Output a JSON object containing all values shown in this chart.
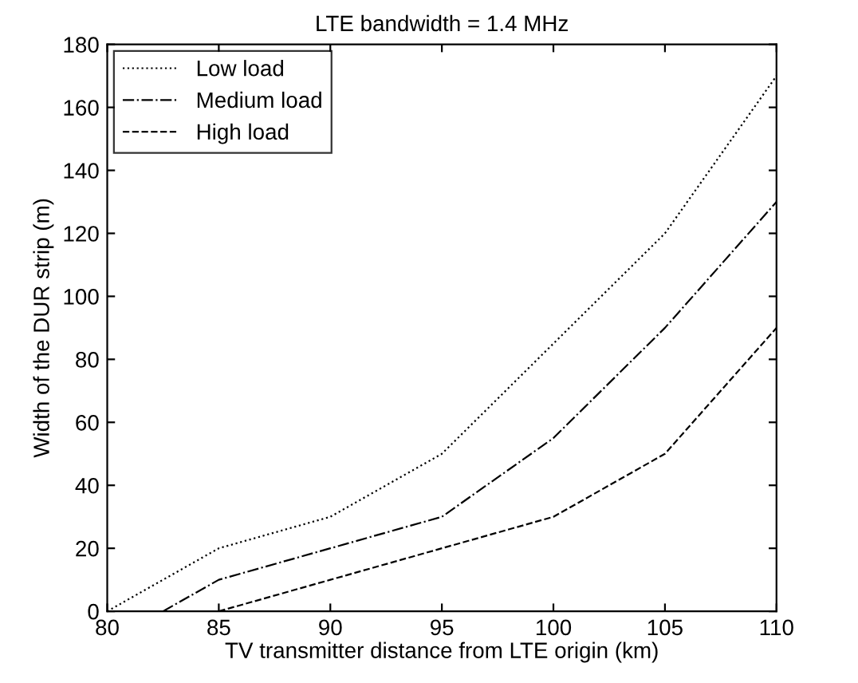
{
  "chart_data": {
    "type": "line",
    "title": "LTE bandwidth = 1.4 MHz",
    "xlabel": "TV transmitter distance from LTE origin (km)",
    "ylabel": "Width of the DUR strip (m)",
    "xlim": [
      80,
      110
    ],
    "xticks": [
      80,
      85,
      90,
      95,
      100,
      105,
      110
    ],
    "ylim": [
      0,
      180
    ],
    "yticks": [
      0,
      20,
      40,
      60,
      80,
      100,
      120,
      140,
      160,
      180
    ],
    "grid": false,
    "legend": "top left",
    "series": [
      {
        "name": "Low load",
        "color": "#000000",
        "line_style": "dotted",
        "x": [
          80,
          85,
          90,
          95,
          100,
          105,
          110
        ],
        "values": [
          0,
          20,
          30,
          50,
          85,
          120,
          170
        ]
      },
      {
        "name": "Medium load",
        "color": "#000000",
        "line_style": "dashdot",
        "x": [
          82.5,
          85,
          90,
          95,
          100,
          105,
          110
        ],
        "values": [
          0,
          10,
          20,
          30,
          55,
          90,
          130
        ]
      },
      {
        "name": "High load",
        "color": "#000000",
        "line_style": "dashed",
        "x": [
          85,
          90,
          95,
          100,
          105,
          110
        ],
        "values": [
          0,
          10,
          20,
          30,
          50,
          90
        ]
      }
    ]
  }
}
